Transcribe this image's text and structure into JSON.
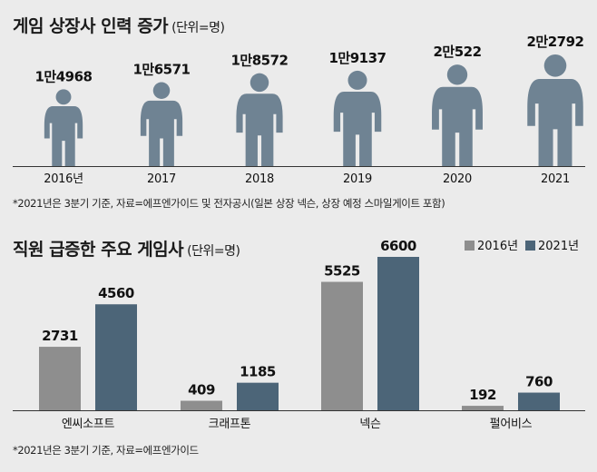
{
  "top": {
    "title": "게임 상장사 인력 증가",
    "unit": "(단위=명)",
    "note": "*2021년은 3분기 기준, 자료=에프엔가이드 및 전자공시(일본 상장 넥슨, 상장 예정 스마일게이트 포함)"
  },
  "bottom": {
    "title": "직원 급증한 주요 게임사",
    "unit": "(단위=명)",
    "note": "*2021년은 3분기 기준, 자료=에프엔가이드"
  },
  "colors": {
    "figure": "#6f8393",
    "bar2016": "#8e8e8e",
    "bar2021": "#4c6578",
    "axis": "#333333"
  },
  "chart_data": [
    {
      "type": "bar",
      "categories": [
        "2016년",
        "2017",
        "2018",
        "2019",
        "2020",
        "2021"
      ],
      "values": [
        14968,
        16571,
        18572,
        19137,
        20522,
        22792
      ],
      "value_labels": [
        "1만4968",
        "1만6571",
        "1만8572",
        "1만9137",
        "2만522",
        "2만2792"
      ],
      "mark": "person-icon"
    },
    {
      "type": "bar",
      "categories": [
        "엔씨소프트",
        "크래프톤",
        "넥슨",
        "펄어비스"
      ],
      "series": [
        {
          "name": "2016년",
          "values": [
            2731,
            409,
            5525,
            192
          ]
        },
        {
          "name": "2021년",
          "values": [
            4560,
            1185,
            6600,
            760
          ]
        }
      ],
      "legend": "top-right",
      "ylim": [
        0,
        6600
      ]
    }
  ]
}
